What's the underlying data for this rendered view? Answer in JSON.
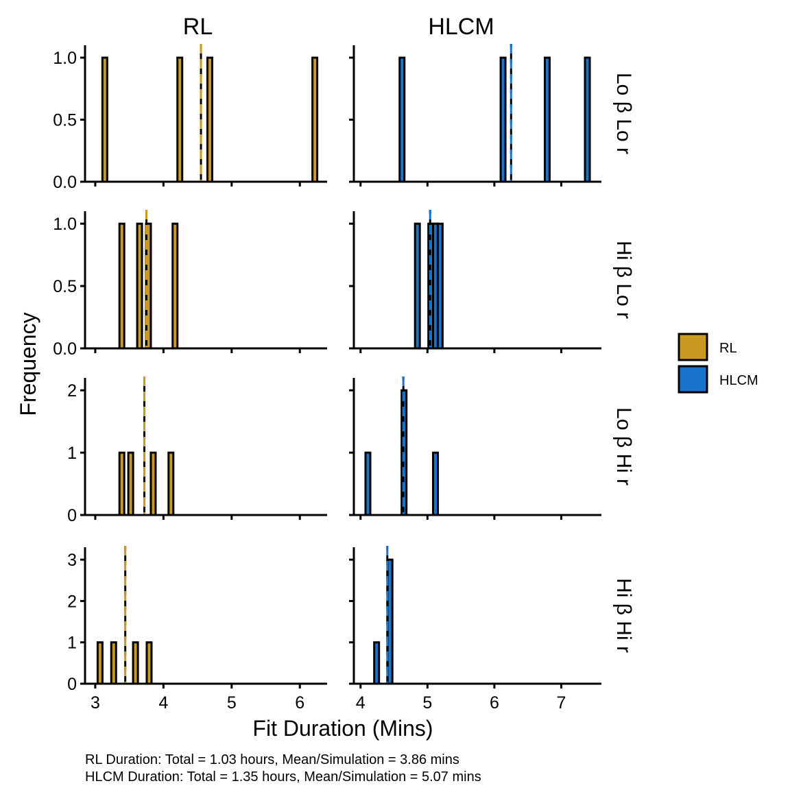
{
  "chart_data": {
    "type": "bar",
    "subtype": "faceted-histogram",
    "xlabel": "Fit Duration (Mins)",
    "ylabel": "Frequency",
    "columns": [
      {
        "name": "RL",
        "color": "#C99A1F",
        "mean_line_color": "#C99A1F",
        "xlim": [
          2.85,
          6.4
        ],
        "xticks": [
          3,
          4,
          5,
          6
        ]
      },
      {
        "name": "HLCM",
        "color": "#1874CD",
        "mean_line_color": "#1874CD",
        "xlim": [
          3.9,
          7.6
        ],
        "xticks": [
          4,
          5,
          6,
          7
        ]
      }
    ],
    "rows": [
      {
        "label": "Lo β Lo r",
        "ylim": [
          0,
          1.1
        ],
        "yticks": [
          0.0,
          0.5,
          1.0
        ],
        "ytick_labels": [
          "0.0",
          "0.5",
          "1.0"
        ]
      },
      {
        "label": "Hi β Lo r",
        "ylim": [
          0,
          1.1
        ],
        "yticks": [
          0.0,
          0.5,
          1.0
        ],
        "ytick_labels": [
          "0.0",
          "0.5",
          "1.0"
        ]
      },
      {
        "label": "Lo β Hi r",
        "ylim": [
          0,
          2.2
        ],
        "yticks": [
          0,
          1,
          2
        ],
        "ytick_labels": [
          "0",
          "1",
          "2"
        ]
      },
      {
        "label": "Hi β Hi r",
        "ylim": [
          0,
          3.3
        ],
        "yticks": [
          0,
          1,
          2,
          3
        ],
        "ytick_labels": [
          "0",
          "1",
          "2",
          "3"
        ]
      }
    ],
    "panels": [
      {
        "row": 0,
        "col": 0,
        "bars": [
          {
            "x": 3.14,
            "count": 1
          },
          {
            "x": 4.24,
            "count": 1
          },
          {
            "x": 4.68,
            "count": 1
          },
          {
            "x": 6.22,
            "count": 1
          }
        ],
        "mean": 4.55
      },
      {
        "row": 0,
        "col": 1,
        "bars": [
          {
            "x": 4.62,
            "count": 1
          },
          {
            "x": 6.13,
            "count": 1
          },
          {
            "x": 6.79,
            "count": 1
          },
          {
            "x": 7.39,
            "count": 1
          }
        ],
        "mean": 6.25
      },
      {
        "row": 1,
        "col": 0,
        "bars": [
          {
            "x": 3.39,
            "count": 1
          },
          {
            "x": 3.65,
            "count": 1
          },
          {
            "x": 3.78,
            "count": 1
          },
          {
            "x": 4.17,
            "count": 1
          }
        ],
        "mean": 3.75
      },
      {
        "row": 1,
        "col": 1,
        "bars": [
          {
            "x": 4.85,
            "count": 1
          },
          {
            "x": 5.05,
            "count": 1
          },
          {
            "x": 5.12,
            "count": 1
          },
          {
            "x": 5.19,
            "count": 1
          }
        ],
        "mean": 5.04
      },
      {
        "row": 2,
        "col": 0,
        "bars": [
          {
            "x": 3.39,
            "count": 1
          },
          {
            "x": 3.52,
            "count": 1
          },
          {
            "x": 3.85,
            "count": 1
          },
          {
            "x": 4.11,
            "count": 1
          }
        ],
        "mean": 3.72
      },
      {
        "row": 2,
        "col": 1,
        "bars": [
          {
            "x": 4.11,
            "count": 1
          },
          {
            "x": 4.65,
            "count": 2
          },
          {
            "x": 5.12,
            "count": 1
          }
        ],
        "mean": 4.64
      },
      {
        "row": 3,
        "col": 0,
        "bars": [
          {
            "x": 3.07,
            "count": 1
          },
          {
            "x": 3.27,
            "count": 1
          },
          {
            "x": 3.59,
            "count": 1
          },
          {
            "x": 3.79,
            "count": 1
          }
        ],
        "mean": 3.44
      },
      {
        "row": 3,
        "col": 1,
        "bars": [
          {
            "x": 4.24,
            "count": 1
          },
          {
            "x": 4.44,
            "count": 3
          }
        ],
        "mean": 4.4
      }
    ],
    "legend": {
      "position": "right",
      "items": [
        {
          "label": "RL",
          "color": "#C99A1F"
        },
        {
          "label": "HLCM",
          "color": "#1874CD"
        }
      ]
    },
    "caption": [
      "RL Duration: Total = 1.03 hours, Mean/Simulation = 3.86 mins",
      "HLCM Duration: Total = 1.35 hours, Mean/Simulation = 5.07 mins"
    ],
    "grid": false
  }
}
